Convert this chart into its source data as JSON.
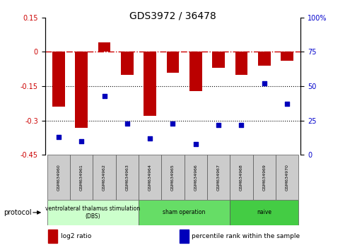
{
  "title": "GDS3972 / 36478",
  "samples": [
    "GSM634960",
    "GSM634961",
    "GSM634962",
    "GSM634963",
    "GSM634964",
    "GSM634965",
    "GSM634966",
    "GSM634967",
    "GSM634968",
    "GSM634969",
    "GSM634970"
  ],
  "log2_ratio": [
    -0.24,
    -0.33,
    0.04,
    -0.1,
    -0.28,
    -0.09,
    -0.17,
    -0.07,
    -0.1,
    -0.06,
    -0.04
  ],
  "percentile_rank": [
    13,
    10,
    43,
    23,
    12,
    23,
    8,
    22,
    22,
    52,
    37
  ],
  "ylim_left": [
    -0.45,
    0.15
  ],
  "ylim_right": [
    0,
    100
  ],
  "yticks_left": [
    0.15,
    0.0,
    -0.15,
    -0.3,
    -0.45
  ],
  "yticks_right": [
    100,
    75,
    50,
    25,
    0
  ],
  "bar_color": "#bb0000",
  "dot_color": "#0000bb",
  "hline_color": "#cc0000",
  "dotted_lines": [
    -0.15,
    -0.3
  ],
  "protocol_groups": [
    {
      "label": "ventrolateral thalamus stimulation\n(DBS)",
      "start": 0,
      "end": 3,
      "color": "#ccffcc"
    },
    {
      "label": "sham operation",
      "start": 4,
      "end": 7,
      "color": "#66dd66"
    },
    {
      "label": "naive",
      "start": 8,
      "end": 10,
      "color": "#44cc44"
    }
  ],
  "legend_items": [
    {
      "label": "log2 ratio",
      "color": "#bb0000"
    },
    {
      "label": "percentile rank within the sample",
      "color": "#0000bb"
    }
  ]
}
